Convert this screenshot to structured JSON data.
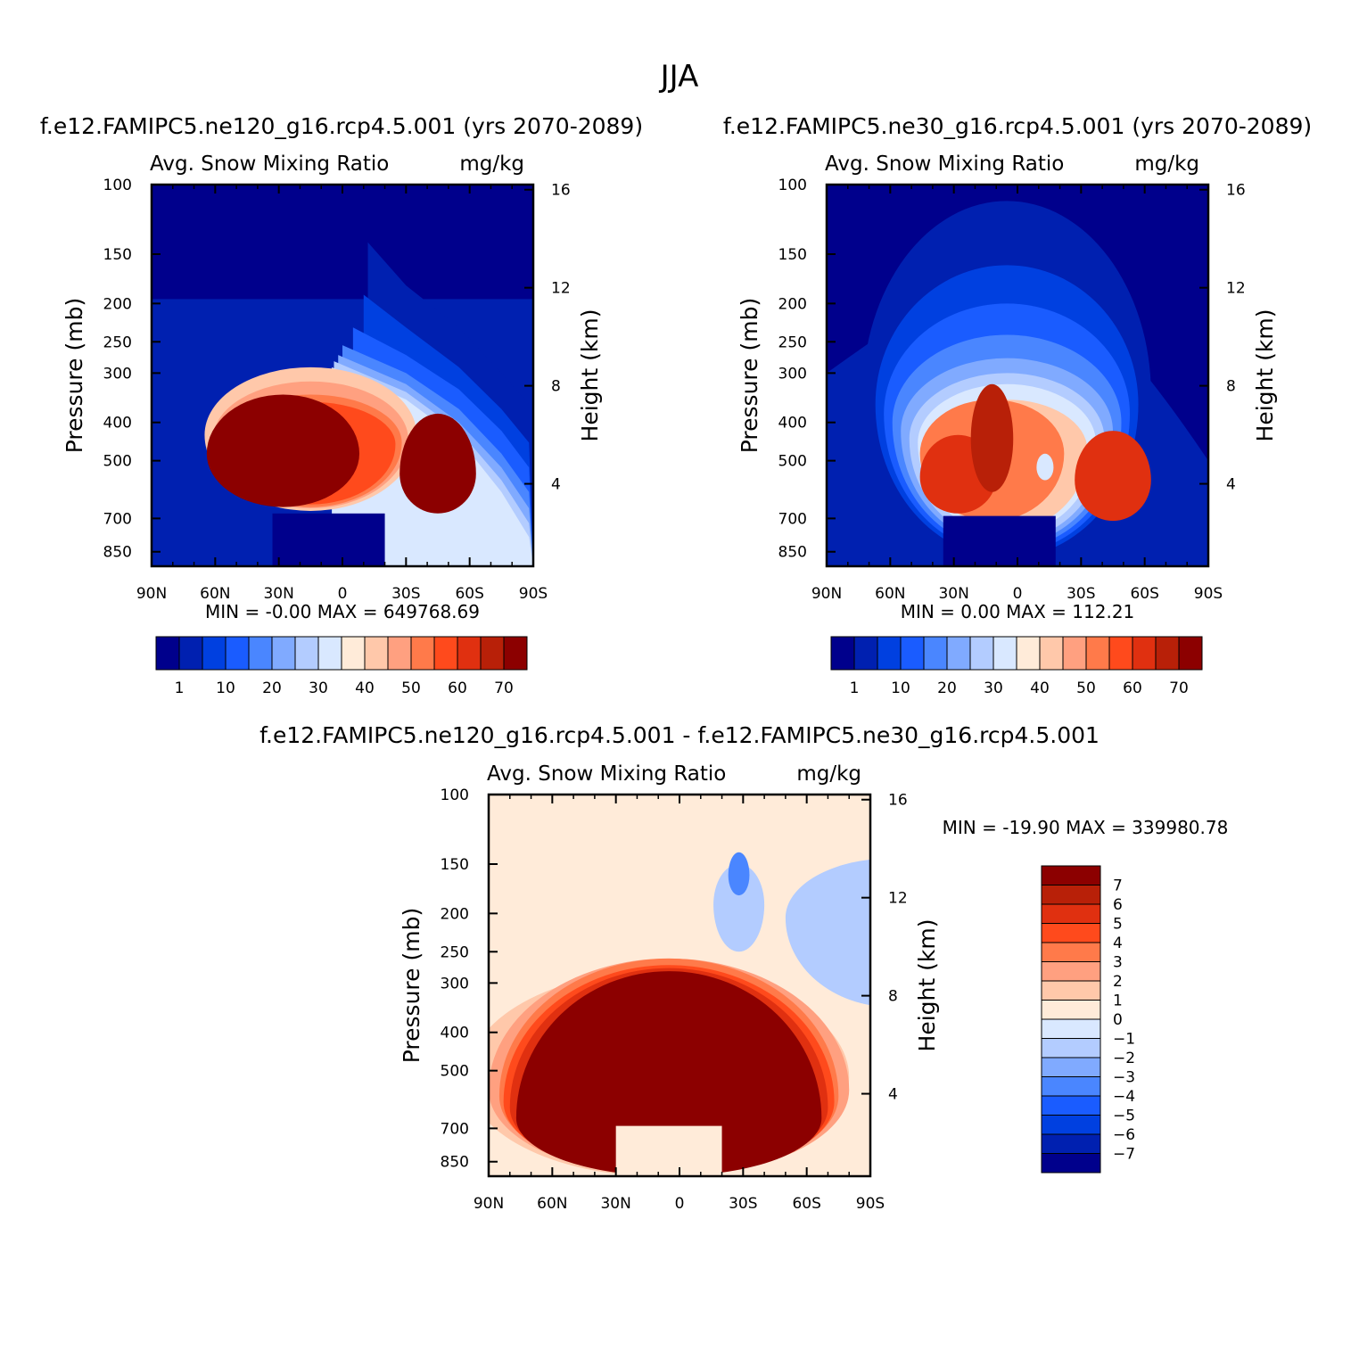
{
  "figure": {
    "title": "JJA"
  },
  "colors": {
    "abs_scale": [
      "#00008c",
      "#0020b0",
      "#0040e0",
      "#1a5cff",
      "#4a86ff",
      "#80aaff",
      "#b3ccff",
      "#d9e8ff",
      "#ffebd9",
      "#ffc8aa",
      "#ffa080",
      "#ff7a4a",
      "#ff4a1c",
      "#e03010",
      "#b82008",
      "#8c0000"
    ],
    "diff_scale": [
      "#00008c",
      "#0020b0",
      "#0040e0",
      "#1a5cff",
      "#4a86ff",
      "#80aaff",
      "#b3ccff",
      "#d9e8ff",
      "#ffebd9",
      "#ffc8aa",
      "#ffa080",
      "#ff7a4a",
      "#ff4a1c",
      "#e03010",
      "#b82008",
      "#8c0000"
    ]
  },
  "chart_data": [
    {
      "type": "heatmap",
      "field": "Avg. Snow Mixing Ratio",
      "units": "mg/kg",
      "title": "f.e12.FAMIPC5.ne120_g16.rcp4.5.001 (yrs 2070-2089)",
      "xlabel": "",
      "ylabel": "Pressure (mb)",
      "y2label": "Height (km)",
      "x_ticks": [
        "90N",
        "60N",
        "30N",
        "0",
        "30S",
        "60S",
        "90S"
      ],
      "x_range": [
        90,
        -90
      ],
      "y_ticks": [
        100,
        150,
        200,
        250,
        300,
        400,
        500,
        700,
        850
      ],
      "y_range": [
        100,
        925
      ],
      "y_scale": "log",
      "y2_ticks": [
        16,
        12,
        8,
        4
      ],
      "stats": {
        "min_label": "MIN =",
        "min": "-0.00",
        "max_label": "MAX =",
        "max": "649768.69"
      },
      "colorbar": {
        "orientation": "horizontal",
        "levels": [
          1,
          10,
          20,
          30,
          40,
          50,
          60,
          70
        ]
      },
      "contours": [
        {
          "lev": 1,
          "lat": [
            -12,
            -30,
            -55,
            -75,
            -88
          ],
          "p": [
            140,
            180,
            230,
            300,
            360
          ]
        },
        {
          "lev": 2,
          "lat": [
            -10,
            -30,
            -55,
            -75,
            -88
          ],
          "p": [
            190,
            230,
            290,
            370,
            450
          ]
        },
        {
          "lev": 3,
          "lat": [
            -5,
            -30,
            -55,
            -75,
            -88
          ],
          "p": [
            230,
            270,
            330,
            420,
            520
          ]
        },
        {
          "lev": 4,
          "lat": [
            0,
            -30,
            -55,
            -75,
            -88
          ],
          "p": [
            255,
            300,
            370,
            480,
            600
          ]
        },
        {
          "lev": 5,
          "lat": [
            2,
            -30,
            -55,
            -75,
            -88
          ],
          "p": [
            270,
            320,
            400,
            520,
            660
          ]
        },
        {
          "lev": 6,
          "lat": [
            4,
            -30,
            -55,
            -75,
            -88
          ],
          "p": [
            280,
            335,
            420,
            560,
            720
          ]
        },
        {
          "lev": 7,
          "lat": [
            5,
            -30,
            -55,
            -75,
            -88
          ],
          "p": [
            290,
            350,
            440,
            600,
            780
          ]
        }
      ],
      "regions": [
        {
          "lev": 9,
          "cx": 15,
          "cp": 430,
          "rx": 50,
          "rp0": 140,
          "rp1": 240
        },
        {
          "lev": 10,
          "cx": 15,
          "cp": 440,
          "rx": 46,
          "rp0": 125,
          "rp1": 220
        },
        {
          "lev": 11,
          "cx": 15,
          "cp": 450,
          "rx": 43,
          "rp0": 110,
          "rp1": 205
        },
        {
          "lev": 12,
          "cx": 15,
          "cp": 455,
          "rx": 40,
          "rp0": 100,
          "rp1": 190
        },
        {
          "lev": 15,
          "cx": 28,
          "cp": 480,
          "rx": 36,
          "rp0": 140,
          "rp1": 175
        },
        {
          "lev": 15,
          "cx": -45,
          "cp": 540,
          "rx": 18,
          "rp0": 160,
          "rp1": 140
        }
      ],
      "low_block": {
        "lev": 0,
        "lat0": 33,
        "lat1": -20,
        "p_top": 680
      }
    },
    {
      "type": "heatmap",
      "field": "Avg. Snow Mixing Ratio",
      "units": "mg/kg",
      "title": "f.e12.FAMIPC5.ne30_g16.rcp4.5.001 (yrs 2070-2089)",
      "xlabel": "",
      "ylabel": "Pressure (mb)",
      "y2label": "Height (km)",
      "x_ticks": [
        "90N",
        "60N",
        "30N",
        "0",
        "30S",
        "60S",
        "90S"
      ],
      "x_range": [
        90,
        -90
      ],
      "y_ticks": [
        100,
        150,
        200,
        250,
        300,
        400,
        500,
        700,
        850
      ],
      "y_range": [
        100,
        925
      ],
      "y_scale": "log",
      "y2_ticks": [
        16,
        12,
        8,
        4
      ],
      "stats": {
        "min_label": "MIN =",
        "min": "0.00",
        "max_label": "MAX =",
        "max": "112.21"
      },
      "colorbar": {
        "orientation": "horizontal",
        "levels": [
          1,
          10,
          20,
          30,
          40,
          50,
          60,
          70
        ]
      },
      "contours": [],
      "regions": [
        {
          "lev": 1,
          "cx": 5,
          "cp": 340,
          "rx": 68,
          "rp0": 230,
          "rp1": 560
        },
        {
          "lev": 2,
          "cx": 5,
          "cp": 360,
          "rx": 62,
          "rp0": 200,
          "rp1": 520
        },
        {
          "lev": 3,
          "cx": 5,
          "cp": 380,
          "rx": 58,
          "rp0": 180,
          "rp1": 480
        },
        {
          "lev": 4,
          "cx": 5,
          "cp": 400,
          "rx": 54,
          "rp0": 160,
          "rp1": 440
        },
        {
          "lev": 5,
          "cx": 5,
          "cp": 420,
          "rx": 50,
          "rp0": 145,
          "rp1": 400
        },
        {
          "lev": 6,
          "cx": 5,
          "cp": 440,
          "rx": 46,
          "rp0": 140,
          "rp1": 360
        },
        {
          "lev": 7,
          "cx": 5,
          "cp": 450,
          "rx": 42,
          "rp0": 130,
          "rp1": 320
        },
        {
          "lev": 9,
          "cx": 5,
          "cp": 470,
          "rx": 38,
          "rp0": 120,
          "rp1": 280
        },
        {
          "lev": 11,
          "cx": 12,
          "cp": 480,
          "rx": 34,
          "rp0": 130,
          "rp1": 230
        },
        {
          "lev": 13,
          "cx": 28,
          "cp": 550,
          "rx": 18,
          "rp0": 120,
          "rp1": 130
        },
        {
          "lev": 14,
          "cx": 12,
          "cp": 440,
          "rx": 10,
          "rp0": 120,
          "rp1": 160
        },
        {
          "lev": 13,
          "cx": -45,
          "cp": 560,
          "rx": 18,
          "rp0": 140,
          "rp1": 150
        },
        {
          "lev": 7,
          "cx": -13,
          "cp": 520,
          "rx": 4,
          "rp0": 40,
          "rp1": 40
        }
      ],
      "low_block": {
        "lev": 0,
        "lat0": 35,
        "lat1": -18,
        "p_top": 690
      }
    },
    {
      "type": "heatmap",
      "field": "Avg. Snow Mixing Ratio",
      "units": "mg/kg",
      "title": "f.e12.FAMIPC5.ne120_g16.rcp4.5.001 - f.e12.FAMIPC5.ne30_g16.rcp4.5.001",
      "xlabel": "",
      "ylabel": "Pressure (mb)",
      "y2label": "Height (km)",
      "x_ticks": [
        "90N",
        "60N",
        "30N",
        "0",
        "30S",
        "60S",
        "90S"
      ],
      "x_range": [
        90,
        -90
      ],
      "y_ticks": [
        100,
        150,
        200,
        250,
        300,
        400,
        500,
        700,
        850
      ],
      "y_range": [
        100,
        925
      ],
      "y_scale": "log",
      "y2_ticks": [
        16,
        12,
        8,
        4
      ],
      "stats": {
        "min_label": "MIN =",
        "min": "-19.90",
        "max_label": "MAX =",
        "max": "339980.78"
      },
      "colorbar": {
        "orientation": "vertical",
        "levels": [
          7,
          6,
          5,
          4,
          3,
          2,
          1,
          0,
          -1,
          -2,
          -3,
          -4,
          -5,
          -6,
          -7
        ]
      },
      "contours": [],
      "regions": [
        {
          "lev": 9,
          "cx": 10,
          "cp": 520,
          "rx": 90,
          "rp0": 240,
          "rp1": 600
        },
        {
          "lev": 10,
          "cx": 5,
          "cp": 560,
          "rx": 85,
          "rp0": 300,
          "rp1": 500
        },
        {
          "lev": 11,
          "cx": 5,
          "cp": 580,
          "rx": 80,
          "rp0": 320,
          "rp1": 450
        },
        {
          "lev": 12,
          "cx": 5,
          "cp": 600,
          "rx": 78,
          "rp0": 330,
          "rp1": 420
        },
        {
          "lev": 13,
          "cx": 5,
          "cp": 620,
          "rx": 75,
          "rp0": 345,
          "rp1": 400
        },
        {
          "lev": 15,
          "cx": 5,
          "cp": 660,
          "rx": 72,
          "rp0": 380,
          "rp1": 380
        },
        {
          "lev": 6,
          "cx": -28,
          "cp": 190,
          "rx": 12,
          "rp0": 40,
          "rp1": 60
        },
        {
          "lev": 4,
          "cx": -28,
          "cp": 160,
          "rx": 5,
          "rp0": 20,
          "rp1": 20
        },
        {
          "lev": 6,
          "cx": -100,
          "cp": 205,
          "rx": 50,
          "rp0": 60,
          "rp1": 140
        }
      ],
      "low_block": {
        "lev": 8,
        "lat0": 30,
        "lat1": -20,
        "p_top": 690
      }
    }
  ]
}
